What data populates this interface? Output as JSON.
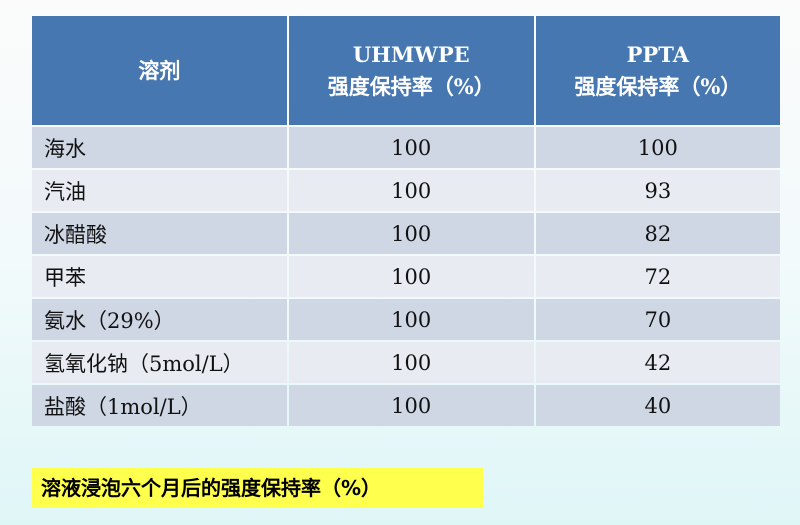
{
  "table": {
    "headers": [
      {
        "line1": "",
        "line2": "溶剂"
      },
      {
        "line1": "UHMWPE",
        "line2": "强度保持率（%）"
      },
      {
        "line1": "PPTA",
        "line2": "强度保持率（%）"
      }
    ],
    "rows": [
      [
        "海水",
        "100",
        "100"
      ],
      [
        "汽油",
        "100",
        "93"
      ],
      [
        "冰醋酸",
        "100",
        "82"
      ],
      [
        "甲苯",
        "100",
        "72"
      ],
      [
        "氨水（29%）",
        "100",
        "70"
      ],
      [
        "氢氧化钠（5mol/L）",
        "100",
        "42"
      ],
      [
        "盐酸（1mol/L）",
        "100",
        "40"
      ]
    ]
  },
  "caption": "溶液浸泡六个月后的强度保持率（%）",
  "colors": {
    "header": "#4677b0",
    "row_dark": "#cfd6e4",
    "row_light": "#e8ebf2",
    "caption_bg": "#ffff4d"
  }
}
